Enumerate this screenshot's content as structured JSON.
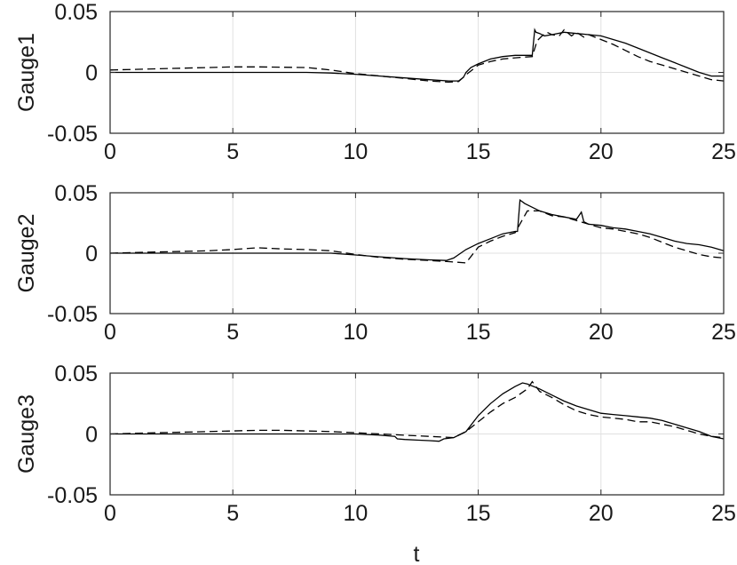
{
  "chart_data": [
    {
      "type": "line",
      "ylabel": "Gauge1",
      "xlabel": "",
      "xlim": [
        0,
        25
      ],
      "ylim": [
        -0.05,
        0.05
      ],
      "xticks": [
        "0",
        "5",
        "10",
        "15",
        "20",
        "25"
      ],
      "yticks": [
        "0.05",
        "0",
        "-0.05"
      ],
      "grid": true,
      "series": [
        {
          "style": "solid",
          "color": "#000000",
          "x": [
            0,
            2,
            4,
            6,
            8,
            9,
            10,
            11,
            12,
            13,
            13.8,
            14.2,
            14.4,
            14.5,
            14.7,
            15,
            15.5,
            16,
            16.5,
            17.2,
            17.3,
            17.35,
            17.5,
            17.7,
            18,
            18.5,
            19,
            19.5,
            20,
            20.5,
            21,
            21.5,
            22,
            22.5,
            23,
            23.5,
            24,
            24.5,
            25
          ],
          "values": [
            0,
            0,
            0,
            0,
            0,
            -0.0005,
            -0.0015,
            -0.003,
            -0.0045,
            -0.006,
            -0.007,
            -0.007,
            -0.004,
            0,
            0.004,
            0.007,
            0.011,
            0.013,
            0.014,
            0.014,
            0.035,
            0.033,
            0.032,
            0.03,
            0.031,
            0.033,
            0.032,
            0.031,
            0.03,
            0.027,
            0.024,
            0.02,
            0.016,
            0.012,
            0.008,
            0.004,
            0,
            -0.003,
            -0.003
          ]
        },
        {
          "style": "dashed",
          "color": "#000000",
          "x": [
            0,
            2,
            4,
            5,
            6,
            8,
            9,
            10,
            11,
            12,
            13,
            13.8,
            14.2,
            14.5,
            15,
            15.5,
            16,
            16.5,
            17.2,
            17.4,
            17.6,
            17.8,
            18,
            18.3,
            18.5,
            18.8,
            19,
            19.3,
            19.5,
            20,
            20.5,
            21,
            21.5,
            22,
            22.5,
            23,
            23.5,
            24,
            24.5,
            25
          ],
          "values": [
            0.002,
            0.003,
            0.004,
            0.0045,
            0.0045,
            0.004,
            0.002,
            -0.001,
            -0.003,
            -0.005,
            -0.007,
            -0.008,
            -0.0075,
            -0.002,
            0.006,
            0.009,
            0.011,
            0.012,
            0.013,
            0.026,
            0.03,
            0.033,
            0.031,
            0.03,
            0.035,
            0.03,
            0.033,
            0.029,
            0.031,
            0.027,
            0.023,
            0.018,
            0.013,
            0.009,
            0.006,
            0.003,
            0,
            -0.003,
            -0.006,
            -0.007
          ]
        }
      ]
    },
    {
      "type": "line",
      "ylabel": "Gauge2",
      "xlabel": "",
      "xlim": [
        0,
        25
      ],
      "ylim": [
        -0.05,
        0.05
      ],
      "xticks": [
        "0",
        "5",
        "10",
        "15",
        "20",
        "25"
      ],
      "yticks": [
        "0.05",
        "0",
        "-0.05"
      ],
      "grid": true,
      "series": [
        {
          "style": "solid",
          "color": "#000000",
          "x": [
            0,
            2,
            4,
            6,
            8,
            9,
            10,
            11,
            12,
            13,
            13.7,
            14,
            14.5,
            15,
            15.5,
            16,
            16.5,
            16.6,
            16.7,
            16.9,
            17.2,
            17.5,
            18,
            18.5,
            19,
            19.2,
            19.3,
            19.5,
            20,
            20.5,
            21,
            21.5,
            22,
            22.5,
            23,
            23.5,
            24,
            24.5,
            25
          ],
          "values": [
            0,
            0,
            0,
            0,
            0,
            0,
            -0.0015,
            -0.003,
            -0.0045,
            -0.0055,
            -0.006,
            -0.004,
            0.003,
            0.008,
            0.012,
            0.016,
            0.018,
            0.018,
            0.044,
            0.041,
            0.038,
            0.035,
            0.032,
            0.03,
            0.028,
            0.034,
            0.026,
            0.024,
            0.023,
            0.021,
            0.02,
            0.018,
            0.016,
            0.013,
            0.01,
            0.008,
            0.007,
            0.005,
            0.002
          ]
        },
        {
          "style": "dashed",
          "color": "#000000",
          "x": [
            0,
            2,
            4,
            5,
            6,
            7,
            8,
            9,
            10,
            11,
            12,
            13,
            13.8,
            14.5,
            15,
            15.5,
            16,
            16.5,
            17,
            17.5,
            18,
            18.5,
            19,
            19.5,
            20,
            20.5,
            21,
            21.5,
            22,
            22.5,
            23,
            23.5,
            24,
            24.5,
            25
          ],
          "values": [
            0,
            0.001,
            0.002,
            0.003,
            0.0045,
            0.0035,
            0.003,
            0.002,
            -0.001,
            -0.0035,
            -0.005,
            -0.006,
            -0.007,
            -0.008,
            0.005,
            0.01,
            0.014,
            0.017,
            0.035,
            0.035,
            0.031,
            0.03,
            0.027,
            0.024,
            0.021,
            0.02,
            0.018,
            0.016,
            0.013,
            0.009,
            0.005,
            0.002,
            -0.001,
            -0.003,
            -0.004
          ]
        }
      ]
    },
    {
      "type": "line",
      "ylabel": "Gauge3",
      "xlabel": "t",
      "xlim": [
        0,
        25
      ],
      "ylim": [
        -0.05,
        0.05
      ],
      "xticks": [
        "0",
        "5",
        "10",
        "15",
        "20",
        "25"
      ],
      "yticks": [
        "0.05",
        "0",
        "-0.05"
      ],
      "grid": true,
      "series": [
        {
          "style": "solid",
          "color": "#000000",
          "x": [
            0,
            2,
            4,
            6,
            8,
            10,
            11,
            11.6,
            11.7,
            12,
            12.5,
            13,
            13.4,
            13.6,
            14,
            14.5,
            15,
            15.5,
            16,
            16.5,
            16.8,
            17,
            17.5,
            18,
            18.5,
            19,
            19.5,
            20,
            20.5,
            21,
            21.5,
            22,
            22.5,
            23,
            23.5,
            24,
            24.5,
            25
          ],
          "values": [
            0,
            0,
            0,
            0,
            0,
            0,
            -0.001,
            -0.002,
            -0.004,
            -0.0045,
            -0.005,
            -0.0055,
            -0.006,
            -0.004,
            -0.003,
            0.002,
            0.015,
            0.025,
            0.033,
            0.039,
            0.042,
            0.041,
            0.037,
            0.032,
            0.027,
            0.023,
            0.02,
            0.017,
            0.016,
            0.015,
            0.014,
            0.013,
            0.011,
            0.008,
            0.005,
            0.002,
            -0.002,
            -0.004
          ]
        },
        {
          "style": "dashed",
          "color": "#000000",
          "x": [
            0,
            2,
            4,
            5,
            6,
            7,
            8,
            9,
            10,
            11,
            12,
            13,
            14,
            14.5,
            15,
            15.5,
            16,
            16.5,
            17,
            17.2,
            17.5,
            18,
            18.5,
            19,
            19.5,
            20,
            20.5,
            21,
            21.5,
            22,
            22.5,
            23,
            23.5,
            24,
            24.5,
            25
          ],
          "values": [
            0,
            0.001,
            0.002,
            0.0025,
            0.003,
            0.003,
            0.0025,
            0.002,
            0.001,
            0,
            -0.001,
            -0.002,
            -0.003,
            0.002,
            0.01,
            0.018,
            0.025,
            0.03,
            0.037,
            0.043,
            0.035,
            0.03,
            0.024,
            0.019,
            0.016,
            0.014,
            0.013,
            0.012,
            0.01,
            0.01,
            0.008,
            0.006,
            0.003,
            0,
            -0.002,
            -0.003
          ]
        }
      ]
    }
  ]
}
